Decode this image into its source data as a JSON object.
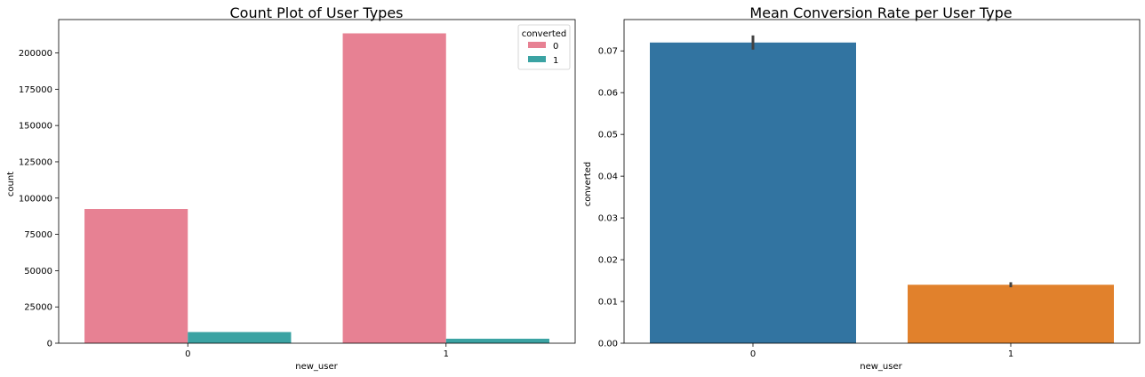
{
  "chart_data": [
    {
      "type": "bar",
      "title": "Count Plot of User Types",
      "xlabel": "new_user",
      "ylabel": "count",
      "categories": [
        "0",
        "1"
      ],
      "ylim": [
        0,
        223000
      ],
      "yticks": [
        0,
        25000,
        50000,
        75000,
        100000,
        125000,
        150000,
        175000,
        200000
      ],
      "legend": {
        "title": "converted",
        "position": "top-right"
      },
      "series": [
        {
          "name": "0",
          "color": "#e78193",
          "values": [
            92500,
            213500
          ]
        },
        {
          "name": "1",
          "color": "#3ba3a3",
          "values": [
            7700,
            3100
          ]
        }
      ]
    },
    {
      "type": "bar",
      "title": "Mean Conversion Rate per User Type",
      "xlabel": "new_user",
      "ylabel": "converted",
      "categories": [
        "0",
        "1"
      ],
      "ylim": [
        0,
        0.0775
      ],
      "yticks": [
        0.0,
        0.01,
        0.02,
        0.03,
        0.04,
        0.05,
        0.06,
        0.07
      ],
      "values": [
        0.072,
        0.014
      ],
      "error": [
        [
          0.0703,
          0.0737
        ],
        [
          0.0134,
          0.0146
        ]
      ],
      "colors": [
        "#3274a1",
        "#e1812c"
      ]
    }
  ]
}
